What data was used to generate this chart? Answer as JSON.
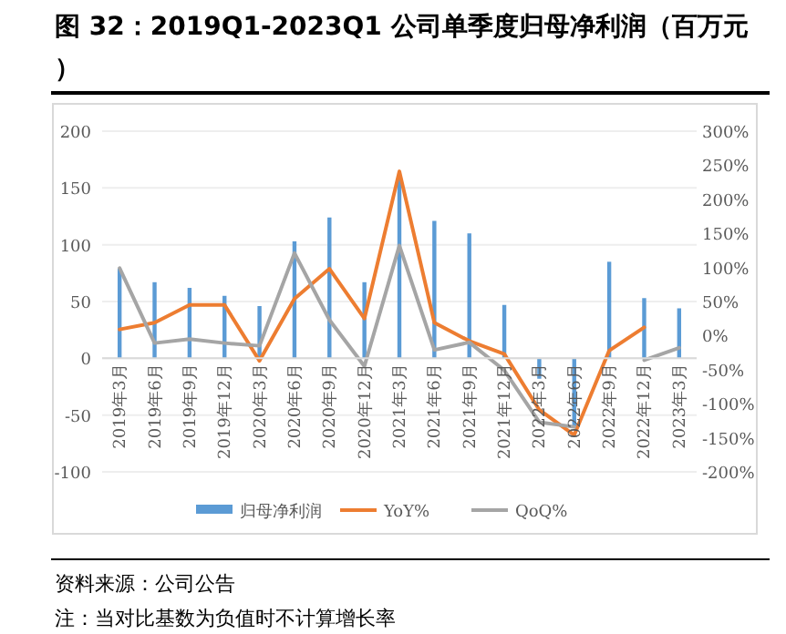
{
  "chart_data": {
    "type": "bar",
    "title": "图 32：2019Q1-2023Q1 公司单季度归母净利润（百万元）",
    "categories": [
      "2019年3月",
      "2019年6月",
      "2019年9月",
      "2019年12月",
      "2020年3月",
      "2020年6月",
      "2020年9月",
      "2020年12月",
      "2021年3月",
      "2021年6月",
      "2021年9月",
      "2021年12月",
      "2022年3月",
      "2022年6月",
      "2022年9月",
      "2022年12月",
      "2023年3月"
    ],
    "series": [
      {
        "name": "归母净利润",
        "color": "#5b9bd5",
        "values": [
          79,
          67,
          62,
          55,
          46,
          103,
          124,
          67,
          160,
          121,
          110,
          47,
          -18,
          -60,
          85,
          53,
          44
        ]
      },
      {
        "name": "YoY%",
        "type": "line",
        "axis": "y2",
        "color": "#ed7d31",
        "values": [
          9,
          19,
          45,
          45,
          -37,
          54,
          98,
          25,
          241,
          19,
          -8,
          -27,
          -109,
          -146,
          -22,
          12,
          null
        ]
      },
      {
        "name": "QoQ%",
        "type": "line",
        "axis": "y2",
        "color": "#a5a5a5",
        "values": [
          99,
          -11,
          -5,
          -11,
          -15,
          121,
          23,
          -45,
          132,
          -21,
          -10,
          -51,
          -127,
          -134,
          null,
          -36,
          -18
        ]
      }
    ],
    "ylim": [
      -100,
      200
    ],
    "yticks": [
      -100,
      -50,
      0,
      50,
      100,
      150,
      200
    ],
    "y2lim": [
      -200,
      300
    ],
    "y2ticks": [
      {
        "value": -200,
        "label": "-200%"
      },
      {
        "value": -150,
        "label": "-150%"
      },
      {
        "value": -100,
        "label": "-100%"
      },
      {
        "value": -50,
        "label": "-50%"
      },
      {
        "value": 0,
        "label": "0%"
      },
      {
        "value": 50,
        "label": "50%"
      },
      {
        "value": 100,
        "label": "100%"
      },
      {
        "value": 150,
        "label": "150%"
      },
      {
        "value": 200,
        "label": "200%"
      },
      {
        "value": 250,
        "label": "250%"
      },
      {
        "value": 300,
        "label": "300%"
      }
    ],
    "grid": "y",
    "legend": "bottom",
    "line_style": "solid",
    "marker": "none",
    "annotations": [
      "资料来源：公司公告",
      "注：当对比基数为负值时不计算增长率"
    ]
  }
}
